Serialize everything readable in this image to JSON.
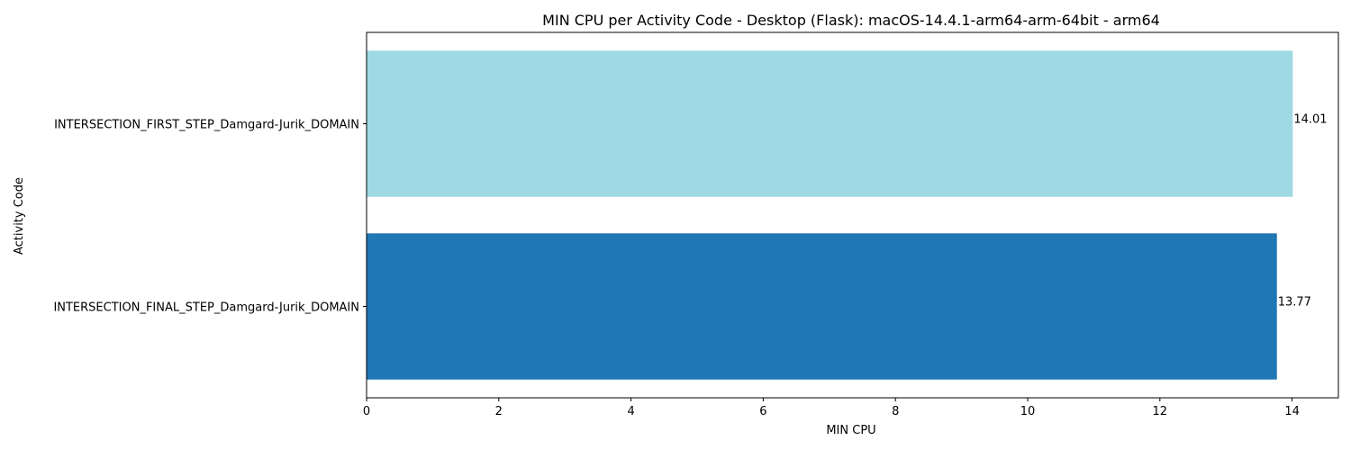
{
  "chart_data": {
    "type": "bar",
    "orientation": "horizontal",
    "title": "MIN CPU per Activity Code - Desktop (Flask): macOS-14.4.1-arm64-arm-64bit - arm64",
    "xlabel": "MIN CPU",
    "ylabel": "Activity Code",
    "xlim": [
      0,
      14.7
    ],
    "xticks": [
      0,
      2,
      4,
      6,
      8,
      10,
      12,
      14
    ],
    "grid": false,
    "categories": [
      "INTERSECTION_FINAL_STEP_Damgard-Jurik_DOMAIN",
      "INTERSECTION_FIRST_STEP_Damgard-Jurik_DOMAIN"
    ],
    "values": [
      13.77,
      14.01
    ],
    "data_labels": [
      "13.77",
      "14.01"
    ],
    "colors": [
      "#1f77b4",
      "#9fdae4"
    ]
  }
}
